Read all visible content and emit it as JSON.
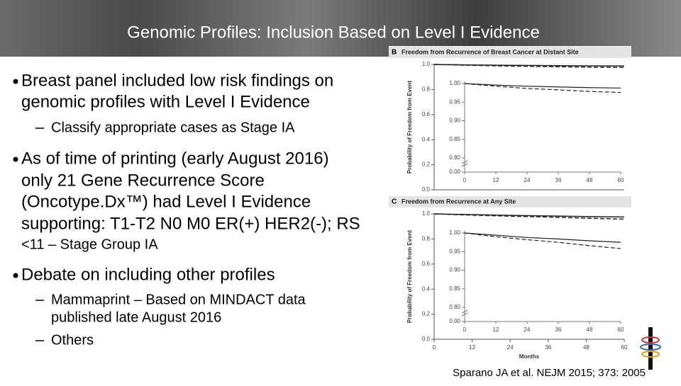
{
  "slide": {
    "title": "Genomic Profiles: Inclusion Based on Level I Evidence",
    "bullets": [
      {
        "lines": [
          "Breast panel included low risk findings on",
          "genomic profiles with Level I Evidence"
        ],
        "sub": [
          {
            "lines": [
              "Classify appropriate cases as Stage IA"
            ]
          }
        ]
      },
      {
        "lines": [
          "As of time of printing (early August 2016)",
          "only 21 Gene Recurrence Score",
          "(Oncotype.Dx™) had Level I Evidence",
          "supporting: T1-T2 N0 M0 ER(+) HER2(-); RS",
          "<11 – Stage Group IA"
        ],
        "sub": []
      },
      {
        "lines": [
          "Debate on including other profiles"
        ],
        "sub": [
          {
            "lines": [
              "Mammaprint – Based on MINDACT data",
              "published late August 2016"
            ]
          },
          {
            "lines": [
              "Others"
            ]
          }
        ]
      }
    ],
    "citation": "Sparano JA et al. NEJM 2015; 373: 2005"
  },
  "chart_data": [
    {
      "type": "line",
      "panel": "B",
      "title": "Freedom from Recurrence of Breast Cancer at Distant Site",
      "y_label": "Probability of Freedom from Event",
      "x": [
        0,
        12,
        24,
        36,
        48,
        60
      ],
      "xlim": [
        0,
        60
      ],
      "ylim": [
        0,
        1
      ],
      "yticks": [
        {
          "value": 0,
          "label": "0.0"
        },
        0.2,
        0.4,
        0.6,
        0.8,
        {
          "value": 1,
          "label": "1.0"
        }
      ],
      "inset_ylim": [
        0.8,
        1.0
      ],
      "inset_yticks": [
        {
          "value": 0,
          "label": "0.00"
        },
        {
          "value": 0.8,
          "label": "0.80"
        },
        0.85,
        {
          "value": 0.9,
          "label": "0.90"
        },
        0.95,
        {
          "value": 1,
          "label": "1.00"
        }
      ],
      "inset_xticks": [
        0,
        12,
        24,
        36,
        48,
        60
      ],
      "series": [
        {
          "color": "#222222",
          "dash": false,
          "values": [
            1.0,
            0.996,
            0.993,
            0.991,
            0.989,
            0.988
          ]
        },
        {
          "color": "#222222",
          "dash": true,
          "values": [
            1.0,
            0.993,
            0.987,
            0.983,
            0.979,
            0.976
          ]
        }
      ]
    },
    {
      "type": "line",
      "panel": "C",
      "title": "Freedom from Recurrence at Any Site",
      "y_label": "Probability of Freedom from Event",
      "x_label": "Months",
      "x": [
        0,
        12,
        24,
        36,
        48,
        60
      ],
      "xlim": [
        0,
        60
      ],
      "xticks": [
        0,
        12,
        24,
        36,
        48,
        60
      ],
      "ylim": [
        0,
        1
      ],
      "yticks": [
        {
          "value": 0,
          "label": "0.0"
        },
        0.2,
        0.4,
        0.6,
        0.8,
        {
          "value": 1,
          "label": "1.0"
        }
      ],
      "inset_ylim": [
        0.8,
        1.0
      ],
      "inset_yticks": [
        {
          "value": 0,
          "label": "0.00"
        },
        {
          "value": 0.8,
          "label": "0.80"
        },
        0.85,
        {
          "value": 0.9,
          "label": "0.90"
        },
        0.95,
        {
          "value": 1,
          "label": "1.00"
        }
      ],
      "inset_xticks": [
        0,
        12,
        24,
        36,
        48,
        60
      ],
      "series": [
        {
          "color": "#222222",
          "dash": false,
          "values": [
            1.0,
            0.994,
            0.988,
            0.984,
            0.979,
            0.975
          ]
        },
        {
          "color": "#222222",
          "dash": true,
          "values": [
            1.0,
            0.99,
            0.982,
            0.975,
            0.966,
            0.958
          ]
        }
      ]
    }
  ]
}
